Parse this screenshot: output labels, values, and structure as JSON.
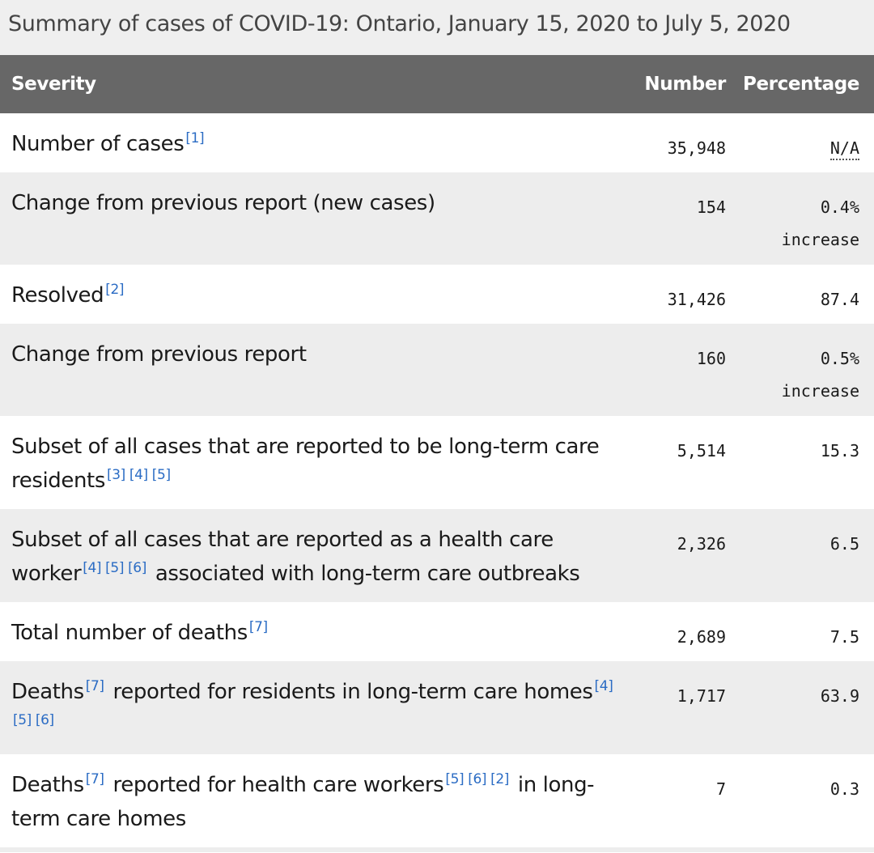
{
  "caption": "Summary of cases of COVID-19: Ontario, January 15, 2020 to July 5, 2020",
  "headers": {
    "severity": "Severity",
    "number": "Number",
    "percentage": "Percentage"
  },
  "rows": [
    {
      "parts": [
        "Number of cases"
      ],
      "refs": [
        [
          "[1]"
        ]
      ],
      "number": "35,948",
      "percentage": "N/A",
      "percentage2": ""
    },
    {
      "parts": [
        "Change from previous report (new cases)"
      ],
      "refs": [
        []
      ],
      "number": "154",
      "percentage": "0.4%",
      "percentage2": "increase"
    },
    {
      "parts": [
        "Resolved"
      ],
      "refs": [
        [
          "[2]"
        ]
      ],
      "number": "31,426",
      "percentage": "87.4",
      "percentage2": ""
    },
    {
      "parts": [
        "Change from previous report"
      ],
      "refs": [
        []
      ],
      "number": "160",
      "percentage": "0.5%",
      "percentage2": "increase"
    },
    {
      "parts": [
        "Subset of all cases that are reported to be long-term care residents"
      ],
      "refs": [
        [
          "[3]",
          "[4]",
          "[5]"
        ]
      ],
      "number": "5,514",
      "percentage": "15.3",
      "percentage2": ""
    },
    {
      "parts": [
        "Subset of all cases that are reported as a health care worker",
        "associated with long-term care outbreaks"
      ],
      "refs": [
        [
          "[4]",
          "[5]",
          "[6]"
        ],
        []
      ],
      "number": "2,326",
      "percentage": "6.5",
      "percentage2": ""
    },
    {
      "parts": [
        "Total number of deaths"
      ],
      "refs": [
        [
          "[7]"
        ]
      ],
      "number": "2,689",
      "percentage": "7.5",
      "percentage2": ""
    },
    {
      "parts": [
        "Deaths",
        "reported for residents in long-term care homes"
      ],
      "refs": [
        [
          "[7]"
        ],
        [
          "[4]",
          "[5]",
          "[6]"
        ]
      ],
      "number": "1,717",
      "percentage": "63.9",
      "percentage2": ""
    },
    {
      "parts": [
        "Deaths",
        "reported for health care workers",
        "in long-term care homes"
      ],
      "refs": [
        [
          "[7]"
        ],
        [
          "[5]",
          "[6]",
          "[2]"
        ],
        []
      ],
      "number": "7",
      "percentage": "0.3",
      "percentage2": ""
    }
  ]
}
